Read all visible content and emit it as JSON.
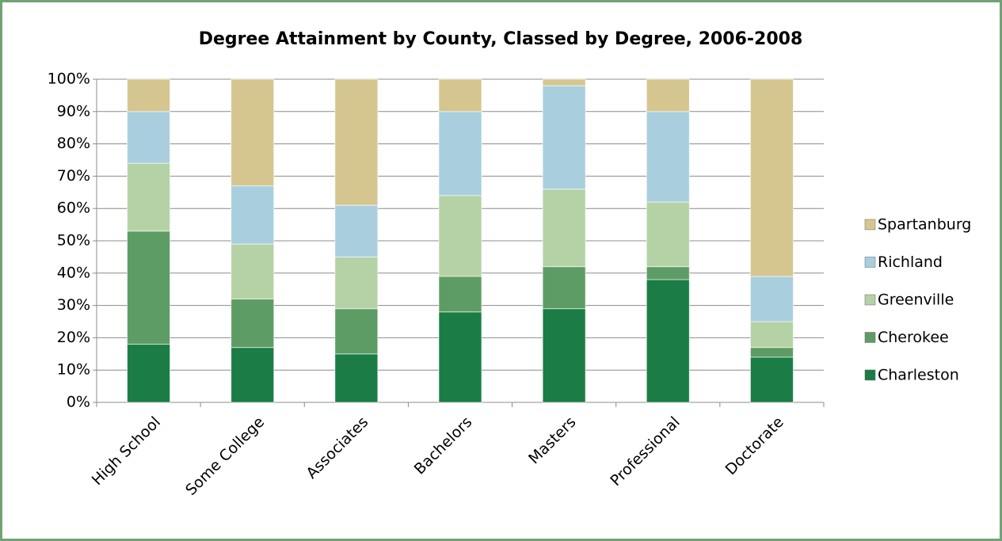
{
  "chart_data": {
    "type": "stacked_bar_100",
    "title": "Degree Attainment by County, Classed by Degree, 2006-2008",
    "categories": [
      "High School",
      "Some College",
      "Associates",
      "Bachelors",
      "Masters",
      "Professional",
      "Doctorate"
    ],
    "series": [
      {
        "name": "Charleston",
        "color": "#1b7c46",
        "values": [
          18,
          17,
          15,
          28,
          29,
          38,
          14
        ]
      },
      {
        "name": "Cherokee",
        "color": "#5e9c65",
        "values": [
          35,
          15,
          14,
          11,
          13,
          4,
          3
        ]
      },
      {
        "name": "Greenville",
        "color": "#b5d2a6",
        "values": [
          21,
          17,
          16,
          25,
          24,
          20,
          8
        ]
      },
      {
        "name": "Richland",
        "color": "#a9cfde",
        "values": [
          16,
          18,
          16,
          26,
          32,
          28,
          14
        ]
      },
      {
        "name": "Spartanburg",
        "color": "#d5c690",
        "values": [
          10,
          33,
          39,
          10,
          2,
          10,
          61
        ]
      }
    ],
    "ylim": [
      0,
      100
    ],
    "yticks": [
      {
        "value": 0,
        "label": "0%"
      },
      {
        "value": 10,
        "label": "10%"
      },
      {
        "value": 20,
        "label": "20%"
      },
      {
        "value": 30,
        "label": "30%"
      },
      {
        "value": 40,
        "label": "40%"
      },
      {
        "value": 50,
        "label": "50%"
      },
      {
        "value": 60,
        "label": "60%"
      },
      {
        "value": 70,
        "label": "70%"
      },
      {
        "value": 80,
        "label": "80%"
      },
      {
        "value": 90,
        "label": "90%"
      },
      {
        "value": 100,
        "label": "100%"
      }
    ],
    "grid": true
  }
}
